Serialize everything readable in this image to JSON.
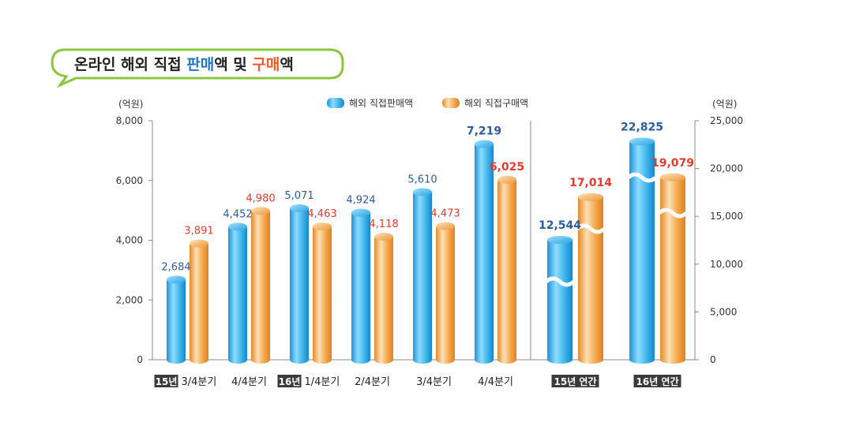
{
  "title": {
    "parts": [
      {
        "text": "온라인 해외 직접 ",
        "color": "#222222"
      },
      {
        "text": "판매",
        "color": "#1f78c8"
      },
      {
        "text": "액 및 ",
        "color": "#222222"
      },
      {
        "text": "구매",
        "color": "#f05a24"
      },
      {
        "text": "액",
        "color": "#222222"
      }
    ]
  },
  "colors": {
    "sales": "#3bb4ea",
    "purchase": "#f4a64a",
    "bubble_border": "#8cc63f"
  },
  "chart_data": [
    {
      "type": "bar",
      "unit_label": "(억원)",
      "ylim": [
        0,
        8000
      ],
      "yticks": [
        "0",
        "2,000",
        "4,000",
        "6,000",
        "8,000"
      ],
      "legend": [
        "해외 직접판매액",
        "해외 직접구매액"
      ],
      "categories": [
        {
          "tag": "15년",
          "label": "3/4분기"
        },
        {
          "tag": "",
          "label": "4/4분기"
        },
        {
          "tag": "16년",
          "label": "1/4분기"
        },
        {
          "tag": "",
          "label": "2/4분기"
        },
        {
          "tag": "",
          "label": "3/4분기"
        },
        {
          "tag": "",
          "label": "4/4분기"
        }
      ],
      "series": [
        {
          "name": "해외 직접판매액",
          "values": [
            2684,
            4452,
            5071,
            4924,
            5610,
            7219
          ],
          "labels": [
            "2,684",
            "4,452",
            "5,071",
            "4,924",
            "5,610",
            "7,219"
          ]
        },
        {
          "name": "해외 직접구매액",
          "values": [
            3891,
            4980,
            4463,
            4118,
            4473,
            6025
          ],
          "labels": [
            "3,891",
            "4,980",
            "4,463",
            "4,118",
            "4,473",
            "6,025"
          ]
        }
      ]
    },
    {
      "type": "bar",
      "unit_label": "(억원)",
      "ylim": [
        0,
        25000
      ],
      "yticks": [
        "0",
        "5,000",
        "10,000",
        "15,000",
        "20,000",
        "25,000"
      ],
      "broken_bars": true,
      "categories": [
        {
          "tag": "15년 연간",
          "label": ""
        },
        {
          "tag": "16년 연간",
          "label": ""
        }
      ],
      "series": [
        {
          "name": "해외 직접판매액",
          "values": [
            12544,
            22825
          ],
          "labels": [
            "12,544",
            "22,825"
          ]
        },
        {
          "name": "해외 직접구매액",
          "values": [
            17014,
            19079
          ],
          "labels": [
            "17,014",
            "19,079"
          ]
        }
      ]
    }
  ]
}
